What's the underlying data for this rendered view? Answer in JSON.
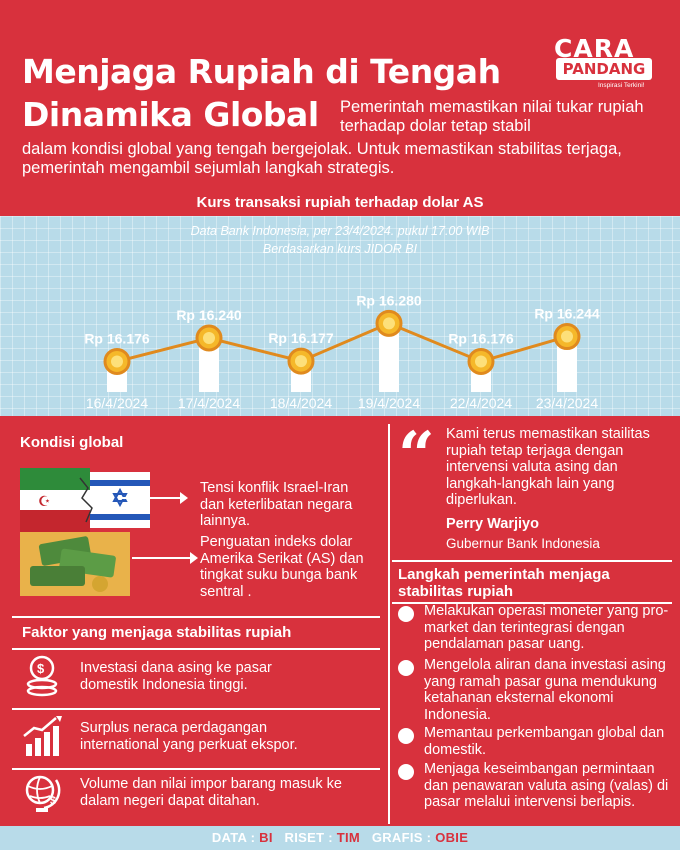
{
  "header": {
    "title_line1": "Menjaga Rupiah di Tengah",
    "title_line2": "Dinamika Global",
    "intro_part1": "Pemerintah memastikan nilai tukar rupiah terhadap dolar tetap stabil",
    "intro_part2": "dalam kondisi global yang tengah bergejolak. Untuk memastikan stabilitas terjaga, pemerintah mengambil sejumlah langkah strategis."
  },
  "logo": {
    "top": "CARA",
    "bottom": "PANDANG",
    "tagline": "Inspirasi Terkini!"
  },
  "chart_data": {
    "type": "line",
    "title": "Kurs transaksi rupiah terhadap dolar AS",
    "subtitle_line1": "Data Bank Indonesia, per 23/4/2024. pukul 17.00 WIB",
    "subtitle_line2": "Berdasarkan kurs JIDOR BI",
    "categories": [
      "16/4/2024",
      "17/4/2024",
      "18/4/2024",
      "19/4/2024",
      "22/4/2024",
      "23/4/2024"
    ],
    "values": [
      16176,
      16240,
      16177,
      16280,
      16176,
      16244
    ],
    "labels": [
      "Rp 16.176",
      "Rp 16.240",
      "Rp 16.177",
      "Rp 16.280",
      "Rp 16.176",
      "Rp 16.244"
    ],
    "colors": {
      "line": "#e08a1e",
      "marker": "#f5b82a",
      "marker_ring": "#ffffff",
      "background": "#b8dbe9"
    }
  },
  "kondisi": {
    "heading": "Kondisi global",
    "item1": "Tensi konflik Israel-Iran dan keterlibatan negara lainnya.",
    "item2": "Penguatan indeks dolar Amerika Serikat (AS) dan tingkat suku bunga bank sentral ."
  },
  "faktor": {
    "heading": "Faktor yang menjaga stabilitas rupiah",
    "items": [
      {
        "text": "Investasi dana asing ke pasar domestik Indonesia tinggi.",
        "icon": "coins-icon"
      },
      {
        "text": "Surplus neraca perdagangan international yang perkuat ekspor.",
        "icon": "growth-chart-icon"
      },
      {
        "text": "Volume dan nilai impor barang masuk ke dalam negeri dapat ditahan.",
        "icon": "globe-icon"
      }
    ]
  },
  "quote": {
    "text": "Kami terus memastikan stailitas rupiah tetap terjaga dengan intervensi valuta asing dan langkah-langkah lain yang diperlukan.",
    "name": "Perry Warjiyo",
    "role": "Gubernur Bank Indonesia"
  },
  "langkah": {
    "heading": "Langkah pemerintah menjaga stabilitas rupiah",
    "items": [
      "Melakukan operasi moneter yang pro-market dan terintegrasi dengan pendalaman pasar uang.",
      "Mengelola aliran dana investasi asing yang ramah pasar guna mendukung ketahanan eksternal ekonomi Indonesia.",
      "Memantau perkembangan global dan domestik.",
      "Menjaga keseimbangan permintaan dan penawaran valuta asing (valas) di pasar melalui intervensi berlapis."
    ]
  },
  "footer": {
    "data_label": "DATA :",
    "data_value": "BI",
    "riset_label": "RISET :",
    "riset_value": "TIM",
    "grafis_label": "GRAFIS :",
    "grafis_value": "OBIE"
  }
}
